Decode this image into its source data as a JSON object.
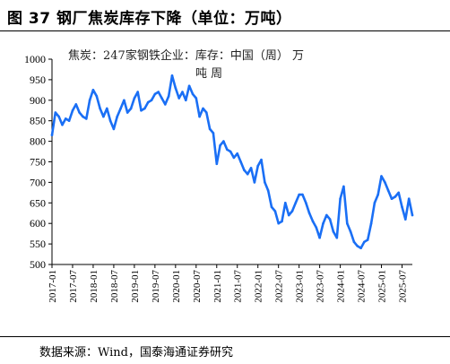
{
  "header": {
    "title": "图 37  钢厂焦炭库存下降（单位：万吨）"
  },
  "footer": {
    "source": "数据来源：Wind，国泰海通证券研究"
  },
  "colors": {
    "line": "#1a6ff5",
    "axis": "#000000"
  },
  "chart_data": {
    "type": "line",
    "title": "",
    "xlabel": "",
    "ylabel": "",
    "ylim": [
      500,
      1000
    ],
    "yticks": [
      500,
      550,
      600,
      650,
      700,
      750,
      800,
      850,
      900,
      950,
      1000
    ],
    "xticks": [
      "2017-01",
      "2017-07",
      "2018-01",
      "2018-07",
      "2019-01",
      "2019-07",
      "2020-01",
      "2020-07",
      "2021-01",
      "2021-07",
      "2022-01",
      "2022-07",
      "2023-01",
      "2023-07",
      "2024-01",
      "2024-07",
      "2025-01",
      "2025-07"
    ],
    "annotation_line1": "焦炭：247家钢铁企业：库存：中国（周）  万",
    "annotation_line2": "吨 周",
    "series": [
      {
        "x": [
          "2017-01",
          "2017-02",
          "2017-03",
          "2017-04",
          "2017-05",
          "2017-06",
          "2017-07",
          "2017-08",
          "2017-09",
          "2017-10",
          "2017-11",
          "2017-12",
          "2018-01",
          "2018-02",
          "2018-03",
          "2018-04",
          "2018-05",
          "2018-06",
          "2018-07",
          "2018-08",
          "2018-09",
          "2018-10",
          "2018-11",
          "2018-12",
          "2019-01",
          "2019-02",
          "2019-03",
          "2019-04",
          "2019-05",
          "2019-06",
          "2019-07",
          "2019-08",
          "2019-09",
          "2019-10",
          "2019-11",
          "2019-12",
          "2020-01",
          "2020-02",
          "2020-03",
          "2020-04",
          "2020-05",
          "2020-06",
          "2020-07",
          "2020-08",
          "2020-09",
          "2020-10",
          "2020-11",
          "2020-12",
          "2021-01",
          "2021-02",
          "2021-03",
          "2021-04",
          "2021-05",
          "2021-06",
          "2021-07",
          "2021-08",
          "2021-09",
          "2021-10",
          "2021-11",
          "2021-12",
          "2022-01",
          "2022-02",
          "2022-03",
          "2022-04",
          "2022-05",
          "2022-06",
          "2022-07",
          "2022-08",
          "2022-09",
          "2022-10",
          "2022-11",
          "2022-12",
          "2023-01",
          "2023-02",
          "2023-03",
          "2023-04",
          "2023-05",
          "2023-06",
          "2023-07",
          "2023-08",
          "2023-09",
          "2023-10",
          "2023-11",
          "2023-12",
          "2024-01",
          "2024-02",
          "2024-03",
          "2024-04",
          "2024-05",
          "2024-06",
          "2024-07",
          "2024-08",
          "2024-09",
          "2024-10",
          "2024-11",
          "2024-12",
          "2025-01",
          "2025-02",
          "2025-03",
          "2025-04",
          "2025-05",
          "2025-06",
          "2025-07",
          "2025-08",
          "2025-09",
          "2025-10"
        ],
        "values": [
          815,
          870,
          860,
          840,
          855,
          850,
          875,
          890,
          870,
          860,
          855,
          900,
          925,
          910,
          880,
          860,
          880,
          850,
          830,
          860,
          880,
          900,
          870,
          880,
          905,
          920,
          875,
          880,
          895,
          900,
          915,
          920,
          905,
          890,
          910,
          960,
          930,
          905,
          920,
          900,
          935,
          915,
          905,
          860,
          880,
          870,
          830,
          820,
          745,
          790,
          800,
          780,
          775,
          760,
          770,
          750,
          730,
          720,
          735,
          700,
          740,
          755,
          700,
          680,
          640,
          630,
          600,
          605,
          650,
          620,
          630,
          650,
          670,
          670,
          650,
          625,
          605,
          590,
          565,
          600,
          620,
          610,
          580,
          565,
          660,
          690,
          600,
          580,
          555,
          545,
          540,
          555,
          560,
          600,
          650,
          670,
          715,
          700,
          680,
          660,
          665,
          675,
          640,
          610,
          660,
          620
        ]
      }
    ]
  }
}
